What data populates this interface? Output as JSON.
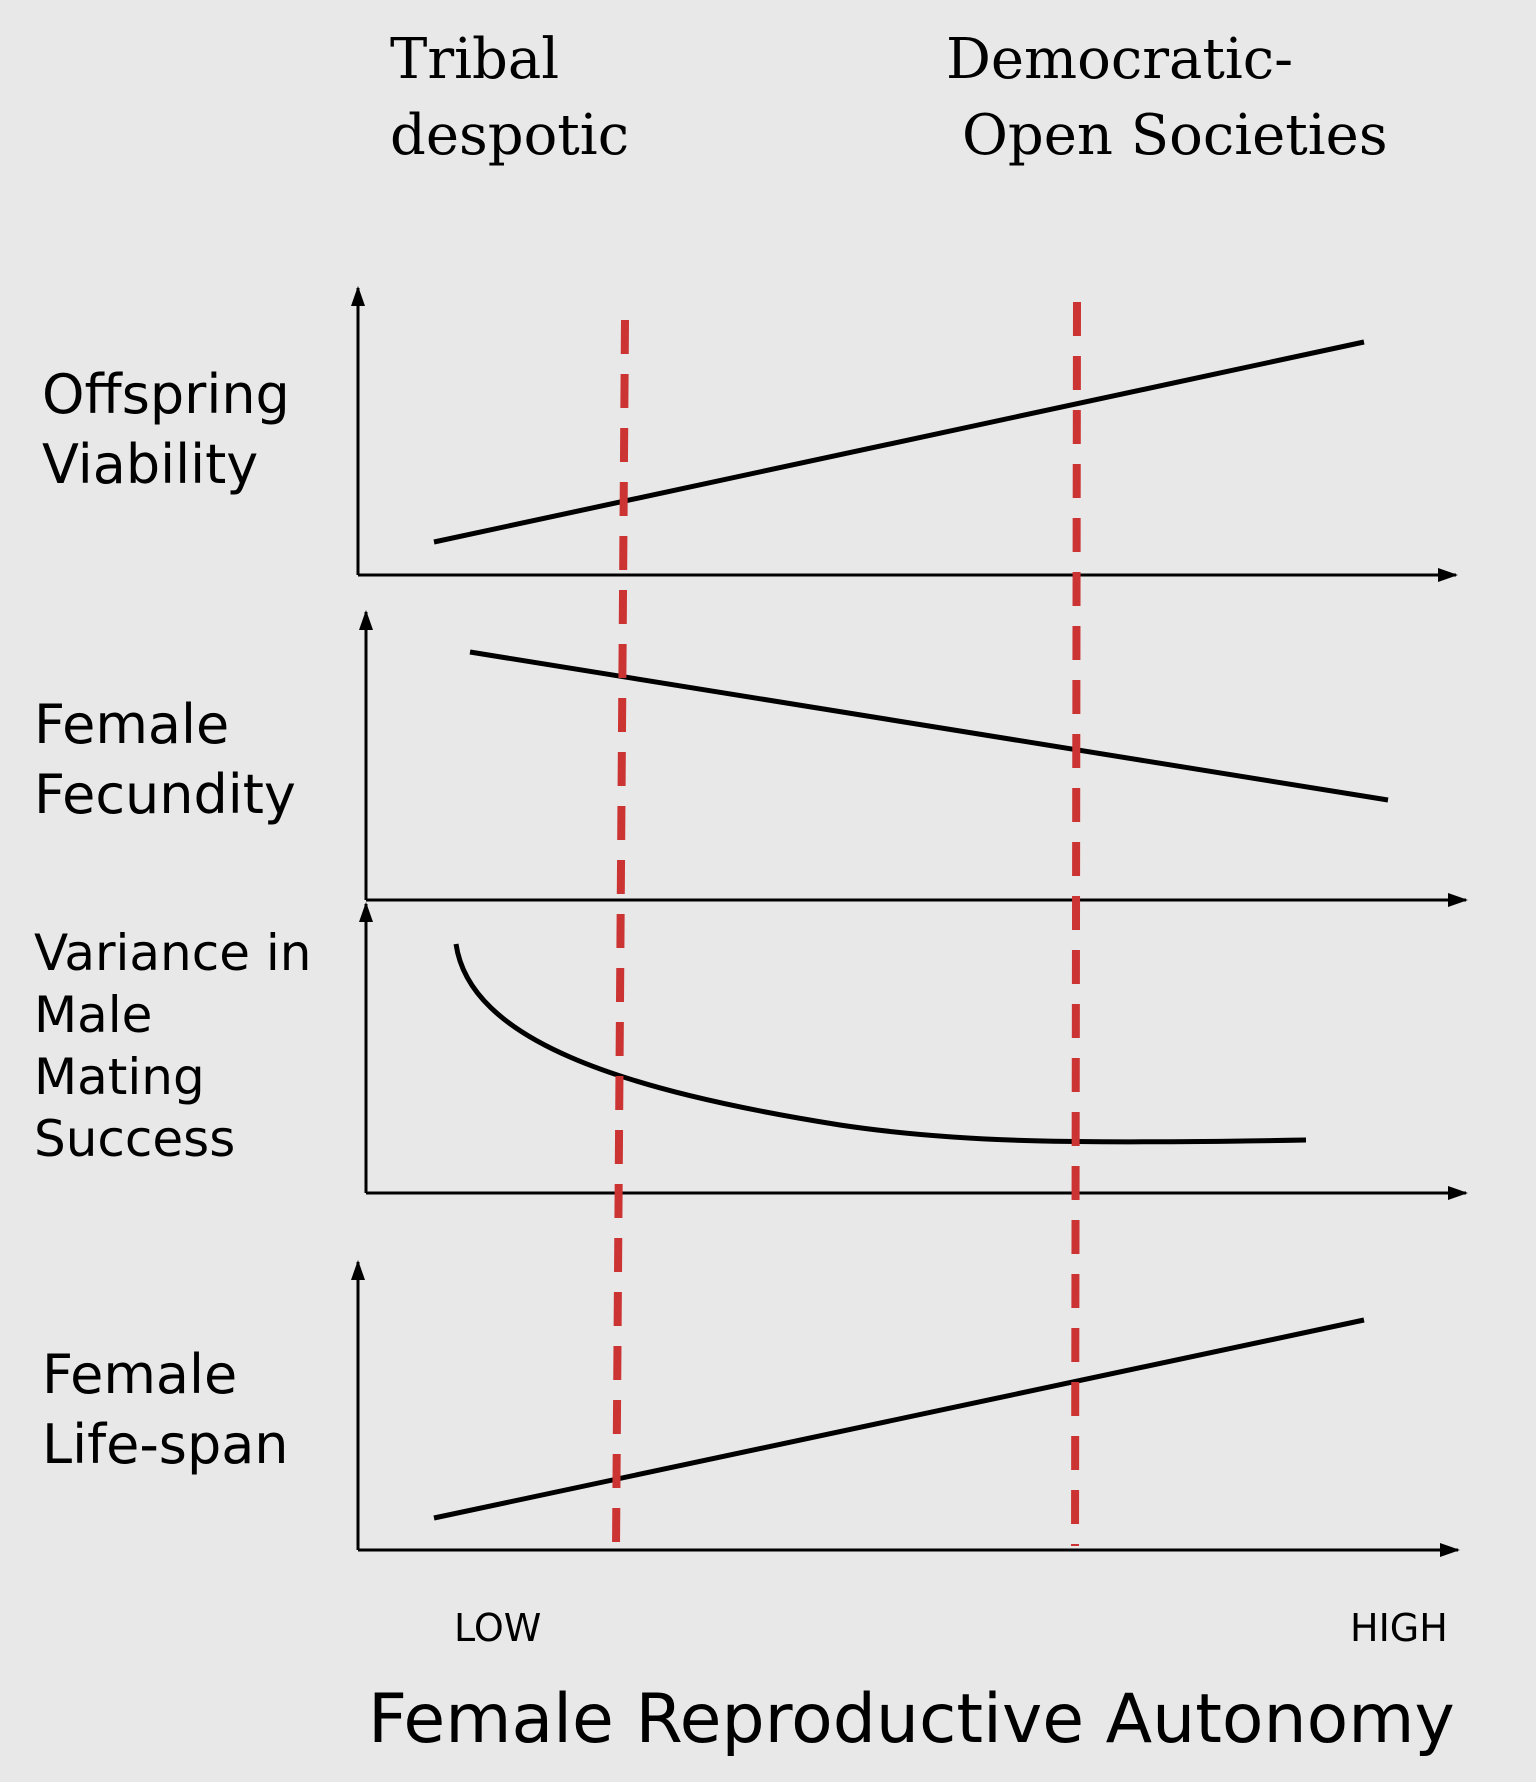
{
  "regimes": [
    {
      "line1": "Tribal",
      "line2": "despotic"
    },
    {
      "line1": "Democratic-",
      "line2": "Open Societies"
    }
  ],
  "panels": [
    {
      "label_lines": [
        "Offspring",
        "Viability"
      ],
      "trend": "increasing-linear"
    },
    {
      "label_lines": [
        "Female",
        "Fecundity"
      ],
      "trend": "decreasing-linear"
    },
    {
      "label_lines": [
        "Variance in",
        "Male",
        "Mating",
        "Success"
      ],
      "trend": "decreasing-convex"
    },
    {
      "label_lines": [
        "Female",
        "Life-span"
      ],
      "trend": "increasing-linear"
    }
  ],
  "x_axis": {
    "low_label": "LOW",
    "high_label": "HIGH",
    "title": "Female Reproductive Autonomy"
  },
  "colors": {
    "background": "#e8e8e8",
    "axis": "#000000",
    "curve": "#000000",
    "divider": "#cc3333"
  }
}
